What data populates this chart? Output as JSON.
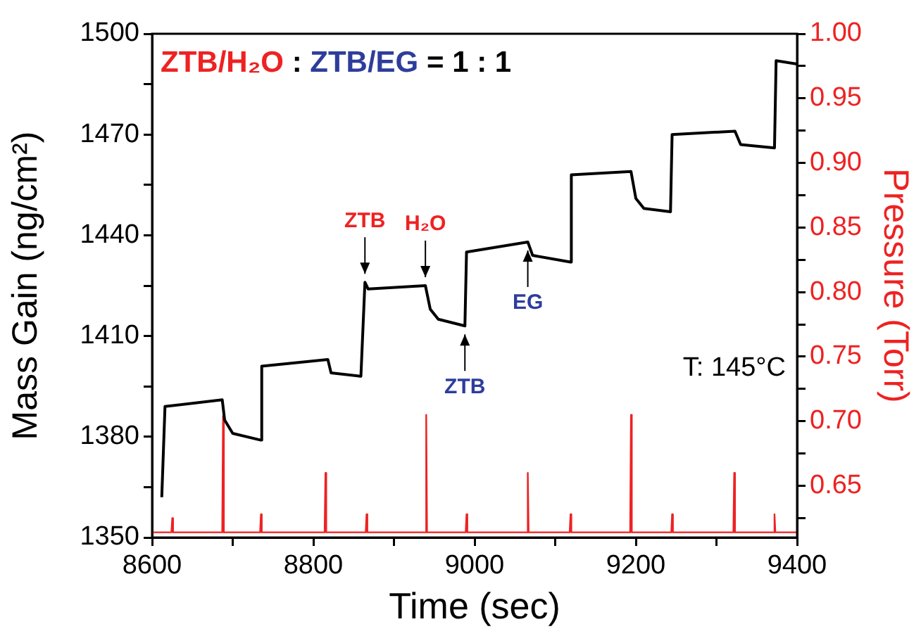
{
  "chart_data": {
    "type": "line",
    "title": "ZTB/H₂O : ZTB/EG = 1 : 1",
    "xlabel": "Time (sec)",
    "ylabel": "Mass Gain (ng/cm²)",
    "y2label": "Pressure (Torr)",
    "xlim": [
      8600,
      9400
    ],
    "xticks": [
      8600,
      {
        "value": 8700,
        "label": null
      },
      8800,
      {
        "value": 8900,
        "label": null
      },
      9000,
      {
        "value": 9100,
        "label": null
      },
      9200,
      {
        "value": 9300,
        "label": null
      },
      9400
    ],
    "ylim": [
      1350,
      1500
    ],
    "yticks": [
      1350,
      {
        "value": 1365,
        "label": null
      },
      1380,
      {
        "value": 1395,
        "label": null
      },
      1410,
      {
        "value": 1425,
        "label": null
      },
      1440,
      {
        "value": 1455,
        "label": null
      },
      1470,
      {
        "value": 1485,
        "label": null
      },
      1500
    ],
    "y2lim": [
      0.61,
      1.0
    ],
    "y2ticks": [
      {
        "value": 0.625,
        "label": null
      },
      0.65,
      {
        "value": 0.675,
        "label": null
      },
      {
        "value": 0.7,
        "label": "0.70"
      },
      {
        "value": 0.725,
        "label": null
      },
      0.75,
      {
        "value": 0.775,
        "label": null
      },
      {
        "value": 0.8,
        "label": "0.80"
      },
      {
        "value": 0.825,
        "label": null
      },
      0.85,
      {
        "value": 0.875,
        "label": null
      },
      {
        "value": 0.9,
        "label": "0.90"
      },
      {
        "value": 0.925,
        "label": null
      },
      0.95,
      {
        "value": 0.975,
        "label": null
      },
      {
        "value": 1.0,
        "label": "1.00"
      }
    ],
    "grid": false,
    "legend": false,
    "marker": "none",
    "line_style": "solid",
    "series": [
      {
        "color": "#000000",
        "x": [
          8612,
          8616,
          8687,
          8690,
          8700,
          8735,
          8736,
          8818,
          8822,
          8859,
          8864,
          8868,
          8939,
          8945,
          8955,
          8988,
          8990,
          9066,
          9072,
          9119,
          9120,
          9194,
          9200,
          9210,
          9243,
          9245,
          9323,
          9330,
          9372,
          9374,
          9400
        ],
        "values": [
          1362,
          1389,
          1391,
          1385,
          1381,
          1379,
          1401,
          1403,
          1399,
          1398,
          1426,
          1424,
          1425,
          1418,
          1415,
          1413,
          1435,
          1438,
          1434,
          1432,
          1458,
          1459,
          1451,
          1448,
          1447,
          1470,
          1471,
          1467,
          1466,
          1492,
          1491
        ]
      },
      {
        "color": "#ee2222",
        "axis": "y2",
        "x": [
          8600,
          8624,
          8625,
          8626,
          8687,
          8688,
          8689,
          8734,
          8735,
          8736,
          8814,
          8815,
          8816,
          8865,
          8866,
          8867,
          8939,
          8940,
          8941,
          8989,
          8990,
          8991,
          9065,
          9066,
          9067,
          9118,
          9119,
          9120,
          9193,
          9194,
          9195,
          9244,
          9245,
          9246,
          9321,
          9322,
          9323,
          9371,
          9372,
          9373,
          9400
        ],
        "values": [
          0.614,
          0.614,
          0.625,
          0.614,
          0.614,
          0.704,
          0.614,
          0.614,
          0.628,
          0.614,
          0.614,
          0.66,
          0.614,
          0.614,
          0.628,
          0.614,
          0.614,
          0.705,
          0.614,
          0.614,
          0.628,
          0.614,
          0.614,
          0.66,
          0.614,
          0.614,
          0.628,
          0.614,
          0.614,
          0.705,
          0.614,
          0.614,
          0.628,
          0.614,
          0.614,
          0.66,
          0.614,
          0.614,
          0.628,
          0.614,
          0.614
        ]
      }
    ],
    "annotations": [
      {
        "text": "ZTB",
        "x": 8864,
        "y": 1426
      },
      {
        "text": "H₂O",
        "x": 8939,
        "y": 1425
      },
      {
        "text": "ZTB",
        "x": 8988,
        "y": 1413
      },
      {
        "text": "EG",
        "x": 9066,
        "y": 1438
      },
      "T: 145°C"
    ]
  }
}
